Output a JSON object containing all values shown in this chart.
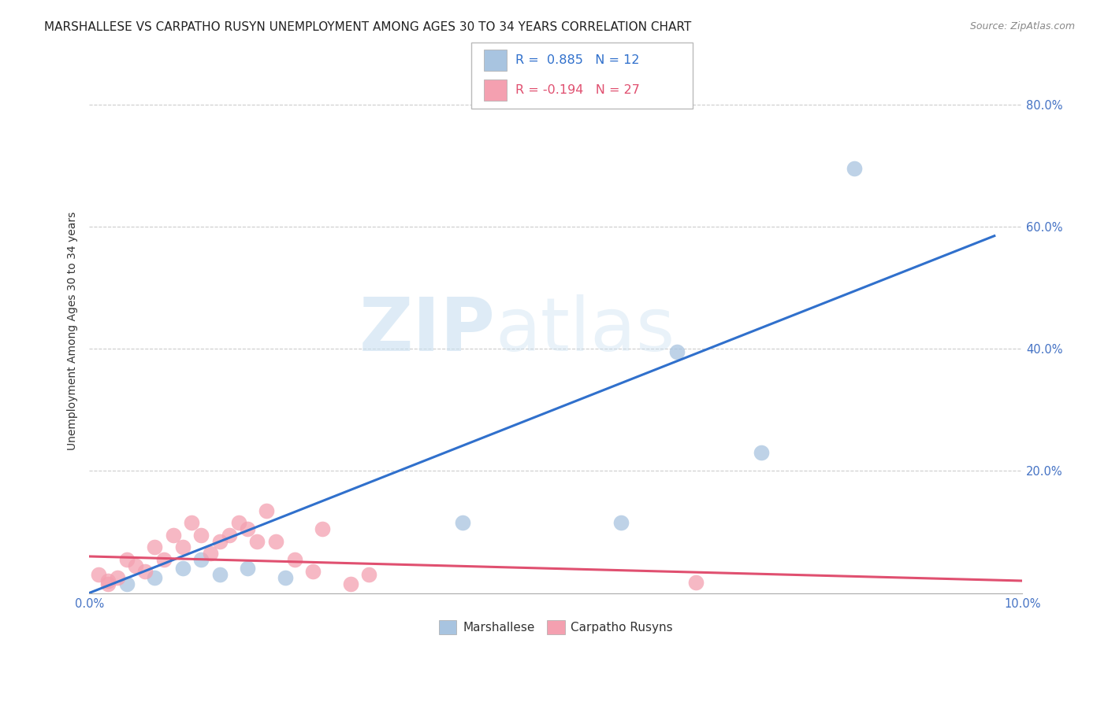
{
  "title": "MARSHALLESE VS CARPATHO RUSYN UNEMPLOYMENT AMONG AGES 30 TO 34 YEARS CORRELATION CHART",
  "source": "Source: ZipAtlas.com",
  "ylabel": "Unemployment Among Ages 30 to 34 years",
  "xlim": [
    0.0,
    0.1
  ],
  "ylim": [
    0.0,
    0.86
  ],
  "x_ticks": [
    0.0,
    0.02,
    0.04,
    0.06,
    0.08,
    0.1
  ],
  "x_tick_labels": [
    "0.0%",
    "",
    "",
    "",
    "",
    "10.0%"
  ],
  "y_ticks": [
    0.0,
    0.2,
    0.4,
    0.6,
    0.8
  ],
  "y_tick_labels": [
    "",
    "20.0%",
    "40.0%",
    "60.0%",
    "80.0%"
  ],
  "marshallese_color": "#a8c4e0",
  "carpatho_color": "#f4a0b0",
  "blue_line_color": "#3070cc",
  "pink_line_color": "#e05070",
  "R_marshallese": 0.885,
  "N_marshallese": 12,
  "R_carpatho": -0.194,
  "N_carpatho": 27,
  "marshallese_x": [
    0.004,
    0.007,
    0.01,
    0.012,
    0.014,
    0.017,
    0.021,
    0.04,
    0.057,
    0.063,
    0.072,
    0.082
  ],
  "marshallese_y": [
    0.015,
    0.025,
    0.04,
    0.055,
    0.03,
    0.04,
    0.025,
    0.115,
    0.115,
    0.395,
    0.23,
    0.695
  ],
  "carpatho_x": [
    0.001,
    0.002,
    0.002,
    0.003,
    0.004,
    0.005,
    0.006,
    0.007,
    0.008,
    0.009,
    0.01,
    0.011,
    0.012,
    0.013,
    0.014,
    0.015,
    0.016,
    0.017,
    0.018,
    0.019,
    0.02,
    0.022,
    0.024,
    0.025,
    0.028,
    0.03,
    0.065
  ],
  "carpatho_y": [
    0.03,
    0.015,
    0.02,
    0.025,
    0.055,
    0.045,
    0.035,
    0.075,
    0.055,
    0.095,
    0.075,
    0.115,
    0.095,
    0.065,
    0.085,
    0.095,
    0.115,
    0.105,
    0.085,
    0.135,
    0.085,
    0.055,
    0.035,
    0.105,
    0.015,
    0.03,
    0.018
  ],
  "blue_line_x": [
    0.0,
    0.097
  ],
  "blue_line_y": [
    0.0,
    0.585
  ],
  "pink_line_x": [
    0.0,
    0.1
  ],
  "pink_line_y": [
    0.06,
    0.02
  ],
  "watermark_zip": "ZIP",
  "watermark_atlas": "atlas",
  "watermark_dot": ".",
  "background_color": "#ffffff",
  "grid_color": "#cccccc",
  "title_fontsize": 11,
  "axis_label_fontsize": 10,
  "tick_fontsize": 10.5,
  "tick_color": "#4472c4",
  "legend_R_color": "#3070cc",
  "legend_R2_color": "#e05070"
}
